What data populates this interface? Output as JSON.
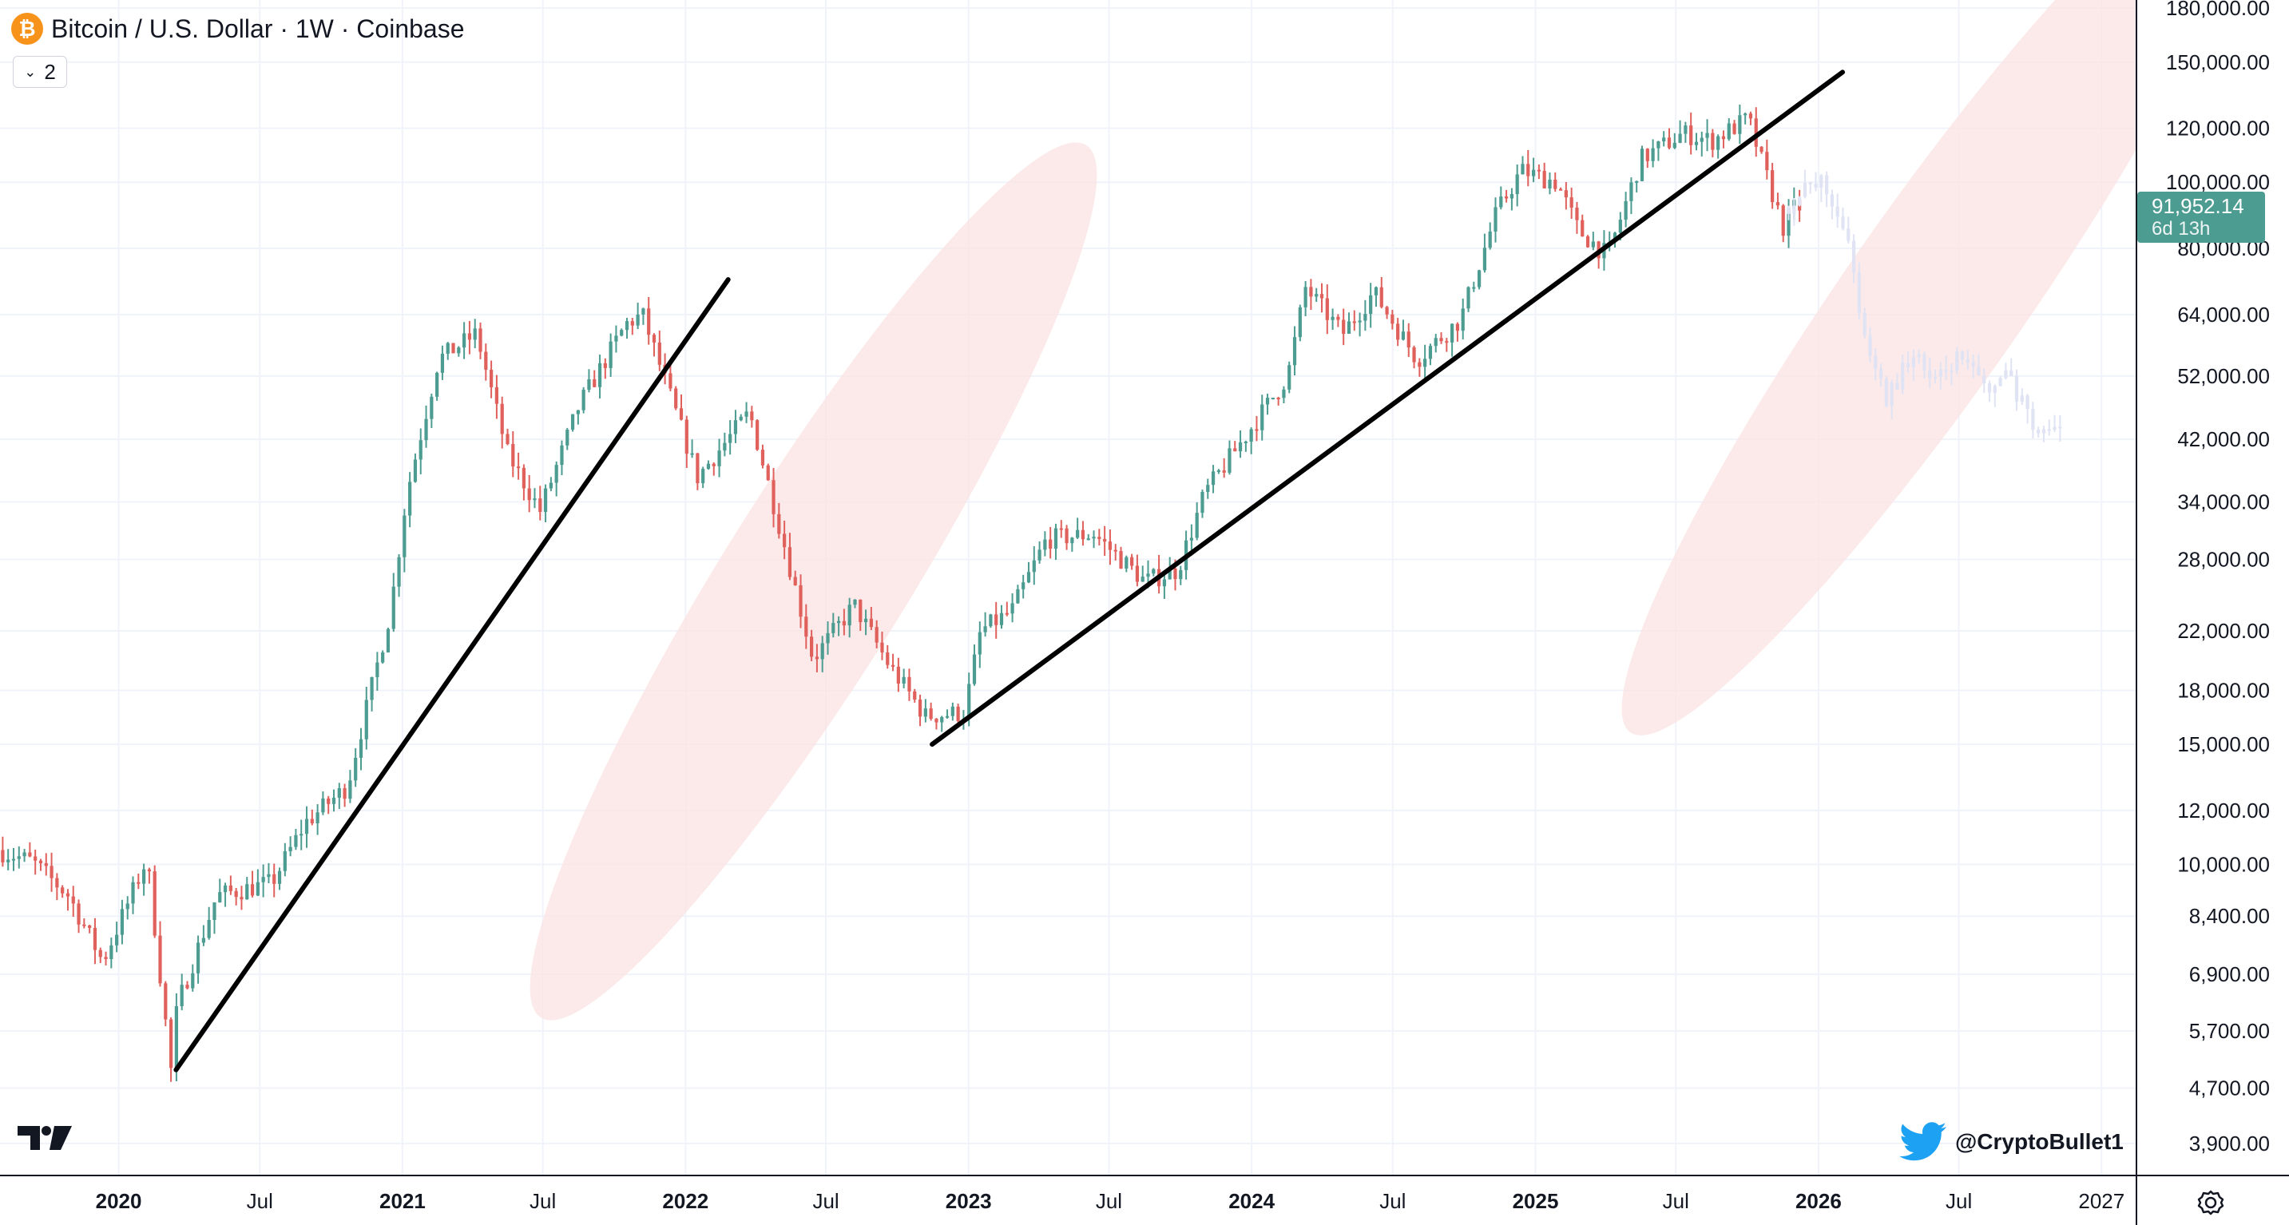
{
  "header": {
    "title": "Bitcoin / U.S. Dollar · 1W · Coinbase",
    "coin_icon": "bitcoin-icon",
    "indicator_count": "2"
  },
  "price_label": {
    "price": "91,952.14",
    "countdown": "6d 13h",
    "color": "#4d9c91"
  },
  "watermark": {
    "handle": "@CryptoBullet1",
    "icon": "twitter-bird-icon",
    "icon_color": "#1da1f2"
  },
  "colors": {
    "up": "#4d9c91",
    "down": "#e0605c",
    "trendline": "#000000",
    "highlight": "#fbe3e3",
    "projection": "#dfe3f3",
    "grid": "#f0f3fa"
  },
  "chart_data": {
    "type": "candlestick",
    "title": "Bitcoin / U.S. Dollar · 1W · Coinbase",
    "y_scale": "log",
    "ylim": [
      3500,
      185000
    ],
    "xlim": [
      "2019-08-01",
      "2027-02-15"
    ],
    "y_ticks": [
      "180,000.00",
      "150,000.00",
      "120,000.00",
      "100,000.00",
      "80,000.00",
      "64,000.00",
      "52,000.00",
      "42,000.00",
      "34,000.00",
      "28,000.00",
      "22,000.00",
      "18,000.00",
      "15,000.00",
      "12,000.00",
      "10,000.00",
      "8,400.00",
      "6,900.00",
      "5,700.00",
      "4,700.00",
      "3,900.00"
    ],
    "x_ticks": [
      {
        "label": "2020",
        "date": "2020-01-01",
        "bold": true
      },
      {
        "label": "Jul",
        "date": "2020-07-01",
        "bold": false
      },
      {
        "label": "2021",
        "date": "2021-01-01",
        "bold": true
      },
      {
        "label": "Jul",
        "date": "2021-07-01",
        "bold": false
      },
      {
        "label": "2022",
        "date": "2022-01-01",
        "bold": true
      },
      {
        "label": "Jul",
        "date": "2022-07-01",
        "bold": false
      },
      {
        "label": "2023",
        "date": "2023-01-01",
        "bold": true
      },
      {
        "label": "Jul",
        "date": "2023-07-01",
        "bold": false
      },
      {
        "label": "2024",
        "date": "2024-01-01",
        "bold": true
      },
      {
        "label": "Jul",
        "date": "2024-07-01",
        "bold": false
      },
      {
        "label": "2025",
        "date": "2025-01-01",
        "bold": true
      },
      {
        "label": "Jul",
        "date": "2025-07-01",
        "bold": false
      },
      {
        "label": "2026",
        "date": "2026-01-01",
        "bold": true
      },
      {
        "label": "Jul",
        "date": "2026-07-01",
        "bold": false
      },
      {
        "label": "2027",
        "date": "2027-01-01",
        "bold": false
      }
    ],
    "price_path": [
      [
        "2019-08-01",
        10500
      ],
      [
        "2019-09-15",
        10100
      ],
      [
        "2019-11-01",
        9000
      ],
      [
        "2019-12-15",
        7200
      ],
      [
        "2020-02-10",
        10200
      ],
      [
        "2020-03-12",
        5000
      ],
      [
        "2020-03-20",
        6200
      ],
      [
        "2020-05-10",
        9000
      ],
      [
        "2020-07-20",
        9400
      ],
      [
        "2020-09-01",
        11500
      ],
      [
        "2020-10-25",
        13000
      ],
      [
        "2020-12-20",
        23500
      ],
      [
        "2021-01-10",
        35000
      ],
      [
        "2021-02-20",
        55000
      ],
      [
        "2021-04-10",
        60000
      ],
      [
        "2021-05-20",
        40000
      ],
      [
        "2021-07-01",
        33000
      ],
      [
        "2021-08-20",
        47000
      ],
      [
        "2021-10-20",
        62000
      ],
      [
        "2021-11-10",
        64000
      ],
      [
        "2021-12-20",
        47000
      ],
      [
        "2022-01-20",
        37000
      ],
      [
        "2022-03-28",
        46000
      ],
      [
        "2022-05-10",
        30000
      ],
      [
        "2022-06-18",
        20000
      ],
      [
        "2022-08-10",
        24000
      ],
      [
        "2022-09-25",
        19500
      ],
      [
        "2022-11-10",
        16500
      ],
      [
        "2022-12-30",
        16700
      ],
      [
        "2023-01-20",
        22000
      ],
      [
        "2023-03-01",
        23500
      ],
      [
        "2023-04-15",
        30000
      ],
      [
        "2023-06-15",
        30500
      ],
      [
        "2023-08-20",
        26000
      ],
      [
        "2023-10-01",
        27000
      ],
      [
        "2023-11-05",
        35000
      ],
      [
        "2023-12-31",
        43000
      ],
      [
        "2024-02-20",
        52000
      ],
      [
        "2024-03-14",
        70000
      ],
      [
        "2024-05-01",
        60000
      ],
      [
        "2024-06-10",
        69000
      ],
      [
        "2024-08-05",
        55000
      ],
      [
        "2024-09-30",
        63000
      ],
      [
        "2024-11-15",
        90000
      ],
      [
        "2024-12-17",
        104000
      ],
      [
        "2025-02-01",
        100000
      ],
      [
        "2025-03-01",
        85000
      ],
      [
        "2025-04-08",
        78000
      ],
      [
        "2025-05-20",
        108000
      ],
      [
        "2025-07-14",
        118000
      ],
      [
        "2025-08-20",
        115000
      ],
      [
        "2025-10-06",
        124000
      ],
      [
        "2025-10-20",
        110000
      ],
      [
        "2025-11-20",
        86000
      ],
      [
        "2025-12-05",
        92000
      ]
    ],
    "projection_path": [
      [
        "2025-11-20",
        92000
      ],
      [
        "2025-12-20",
        97000
      ],
      [
        "2026-01-10",
        100000
      ],
      [
        "2026-02-10",
        85000
      ],
      [
        "2026-03-01",
        62000
      ],
      [
        "2026-04-01",
        48000
      ],
      [
        "2026-05-10",
        57000
      ],
      [
        "2026-06-01",
        50000
      ],
      [
        "2026-07-01",
        55000
      ],
      [
        "2026-08-10",
        50000
      ],
      [
        "2026-09-05",
        52000
      ],
      [
        "2026-10-01",
        46000
      ],
      [
        "2026-10-20",
        43000
      ],
      [
        "2026-11-10",
        44000
      ]
    ],
    "trendlines": [
      {
        "from": [
          "2020-03-15",
          5000
        ],
        "to": [
          "2022-02-25",
          72000
        ]
      },
      {
        "from": [
          "2022-11-15",
          15000
        ],
        "to": [
          "2026-02-01",
          145000
        ]
      }
    ],
    "highlight_ellipses": [
      {
        "center": [
          "2022-06-15",
          26000
        ],
        "rx_days": 118,
        "ry_log_span": 0.29,
        "tilt_deg": -58
      },
      {
        "center": [
          "2026-06-01",
          68000
        ],
        "rx_days": 115,
        "ry_log_span": 0.3,
        "tilt_deg": -55
      }
    ]
  }
}
